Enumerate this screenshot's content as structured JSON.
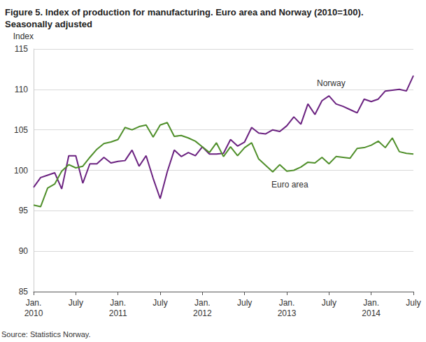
{
  "chart_data": {
    "type": "line",
    "title": "Figure 5. Index of production for manufacturing. Euro area and Norway (2010=100).\nSeasonally adjusted",
    "y_label": "Index",
    "source": "Source: Statistics Norway.",
    "categories": [
      "Jan.\n2010",
      null,
      null,
      null,
      null,
      null,
      "July",
      null,
      null,
      null,
      null,
      null,
      "Jan.\n2011",
      null,
      null,
      null,
      null,
      null,
      "July",
      null,
      null,
      null,
      null,
      null,
      "Jan.\n2012",
      null,
      null,
      null,
      null,
      null,
      "July",
      null,
      null,
      null,
      null,
      null,
      "Jan.\n2013",
      null,
      null,
      null,
      null,
      null,
      "July",
      null,
      null,
      null,
      null,
      null,
      "Jan.\n2014",
      null,
      null,
      null,
      null,
      null,
      "July"
    ],
    "series": [
      {
        "name": "Norway",
        "color": "#6b2280",
        "values": [
          97.9,
          99.1,
          99.4,
          99.7,
          97.7,
          101.8,
          101.8,
          98.4,
          100.8,
          100.8,
          101.6,
          100.9,
          101.1,
          101.2,
          102.5,
          100.5,
          101.8,
          99.0,
          96.5,
          99.8,
          102.5,
          101.7,
          102.2,
          101.8,
          102.9,
          102.0,
          102.0,
          102.1,
          103.8,
          103.0,
          103.5,
          105.3,
          104.6,
          104.5,
          105.0,
          104.8,
          105.5,
          106.6,
          105.7,
          108.2,
          106.9,
          108.6,
          109.2,
          108.2,
          107.9,
          107.5,
          107.1,
          108.8,
          108.5,
          108.8,
          109.8,
          109.9,
          110.0,
          109.8,
          111.7
        ]
      },
      {
        "name": "Euro area",
        "color": "#4f8f2a",
        "values": [
          95.7,
          95.5,
          97.8,
          98.3,
          99.9,
          100.7,
          100.3,
          100.5,
          101.6,
          102.6,
          103.3,
          103.5,
          103.8,
          105.3,
          105.0,
          105.4,
          105.6,
          104.1,
          105.6,
          105.9,
          104.2,
          104.3,
          104.0,
          103.6,
          102.9,
          102.2,
          103.4,
          101.7,
          102.9,
          101.8,
          102.8,
          103.4,
          101.4,
          100.6,
          99.8,
          100.7,
          99.9,
          100.0,
          100.4,
          101.0,
          100.9,
          101.6,
          100.8,
          101.7,
          101.6,
          101.5,
          102.7,
          102.8,
          103.1,
          103.6,
          102.8,
          104.0,
          102.3,
          102.1,
          102.0
        ]
      }
    ],
    "ylim": [
      85,
      115
    ],
    "yticks": [
      85,
      90,
      95,
      100,
      105,
      110,
      115
    ],
    "grid": true
  }
}
